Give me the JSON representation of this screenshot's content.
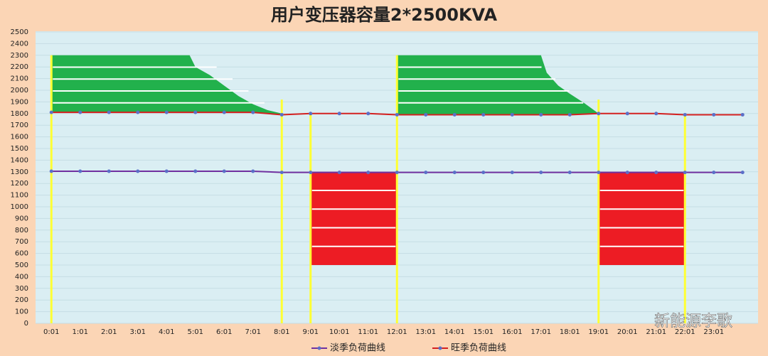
{
  "chart_data": {
    "type": "line",
    "title": "用户变压器容量2*2500KVA",
    "categories": [
      "0:01",
      "1:01",
      "2:01",
      "3:01",
      "4:01",
      "5:01",
      "6:01",
      "7:01",
      "8:01",
      "9:01",
      "10:01",
      "11:01",
      "12:01",
      "13:01",
      "14:01",
      "15:01",
      "16:01",
      "17:01",
      "18:01",
      "19:01",
      "20:01",
      "21:01",
      "22:01",
      "23:01",
      null
    ],
    "series": [
      {
        "name": "淡季负荷曲线",
        "color": "#7030a0",
        "values": [
          1305,
          1305,
          1305,
          1305,
          1305,
          1305,
          1305,
          1305,
          1295,
          1295,
          1295,
          1295,
          1295,
          1295,
          1295,
          1295,
          1295,
          1295,
          1295,
          1295,
          1295,
          1295,
          1295,
          1295,
          1295
        ]
      },
      {
        "name": "旺季负荷曲线",
        "color": "#d42020",
        "values": [
          1810,
          1810,
          1810,
          1810,
          1810,
          1810,
          1810,
          1810,
          1790,
          1800,
          1800,
          1800,
          1790,
          1790,
          1790,
          1790,
          1790,
          1790,
          1790,
          1800,
          1800,
          1800,
          1790,
          1790,
          1790
        ]
      }
    ],
    "areas": [
      {
        "color": "#22b14c",
        "x": [
          0,
          4.8,
          5,
          5.5,
          6,
          6.5,
          7,
          7.5,
          8
        ],
        "upper": [
          2300,
          2300,
          2200,
          2130,
          2040,
          1950,
          1880,
          1830,
          1800
        ],
        "lower": [
          1810,
          1810,
          1810,
          1810,
          1810,
          1810,
          1810,
          1800,
          1790
        ]
      },
      {
        "color": "#ed1c24",
        "x": [
          9,
          12
        ],
        "upper": [
          1300,
          1300
        ],
        "lower": [
          500,
          500
        ]
      },
      {
        "color": "#22b14c",
        "x": [
          12,
          17,
          17.2,
          17.6,
          18,
          18.5,
          19
        ],
        "upper": [
          2300,
          2300,
          2150,
          2040,
          1970,
          1890,
          1800
        ],
        "lower": [
          1790,
          1790,
          1790,
          1790,
          1790,
          1795,
          1800
        ]
      },
      {
        "color": "#ed1c24",
        "x": [
          19,
          22
        ],
        "upper": [
          1300,
          1300
        ],
        "lower": [
          500,
          500
        ]
      }
    ],
    "vlines": {
      "color": "#ffff33",
      "x": [
        0,
        8,
        9,
        12,
        19,
        22
      ],
      "top": [
        2300,
        1920,
        1800,
        2300,
        1920,
        1800
      ]
    },
    "ylim": [
      0,
      2500
    ],
    "yticks": [
      0,
      100,
      200,
      300,
      400,
      500,
      600,
      700,
      800,
      900,
      1000,
      1100,
      1200,
      1300,
      1400,
      1500,
      1600,
      1700,
      1800,
      1900,
      2000,
      2100,
      2200,
      2300,
      2400,
      2500
    ],
    "grid": true,
    "legend": "bottom",
    "watermark": "新能源李歌"
  }
}
